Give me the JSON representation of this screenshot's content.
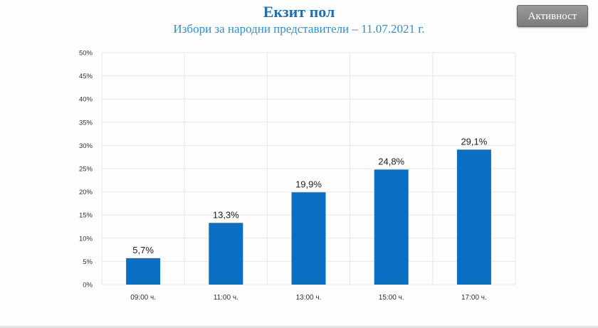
{
  "header": {
    "title": "Екзит пол",
    "subtitle": "Избори за народни представители – 11.07.2021 г."
  },
  "activity_button": {
    "label": "Активност"
  },
  "colors": {
    "bar": "#0a6fc2",
    "title": "#1f6fb0",
    "subtitle": "#2f8fcf",
    "grid": "#e8e8e8",
    "tick_text": "#333333",
    "value_label": "#222222"
  },
  "chart_data": {
    "type": "bar",
    "categories": [
      "09:00 ч.",
      "11:00 ч.",
      "13:00 ч.",
      "15:00 ч.",
      "17:00 ч."
    ],
    "values": [
      5.7,
      13.3,
      19.9,
      24.8,
      29.1
    ],
    "value_labels": [
      "5,7%",
      "13,3%",
      "19,9%",
      "24,8%",
      "29,1%"
    ],
    "ylim": [
      0,
      50
    ],
    "yticks": [
      0,
      5,
      10,
      15,
      20,
      25,
      30,
      35,
      40,
      45,
      50
    ],
    "ytick_labels": [
      "0%",
      "5%",
      "10%",
      "15%",
      "20%",
      "25%",
      "30%",
      "35%",
      "40%",
      "45%",
      "50%"
    ],
    "grid": true,
    "legend": false
  }
}
